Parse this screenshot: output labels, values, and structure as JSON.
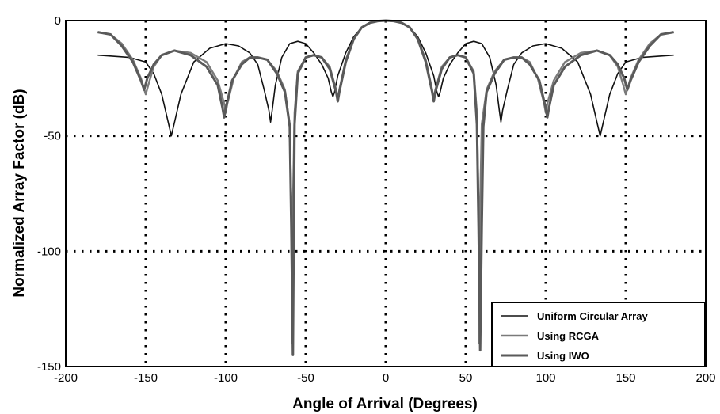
{
  "chart_data": {
    "type": "line",
    "title": "",
    "xlabel": "Angle of Arrival (Degrees)",
    "ylabel": "Normalized Array Factor (dB)",
    "xlim": [
      -200,
      200
    ],
    "ylim": [
      -150,
      0
    ],
    "xticks": [
      "-200",
      "-150",
      "-100",
      "-50",
      "0",
      "50",
      "100",
      "150",
      "200"
    ],
    "yticks": [
      "0",
      "-50",
      "-100",
      "-150"
    ],
    "xtick_values": [
      -200,
      -150,
      -100,
      -50,
      0,
      50,
      100,
      150,
      200
    ],
    "ytick_values": [
      0,
      -50,
      -100,
      -150
    ],
    "grid": "dotted, major ticks",
    "legend_position": "bottom-right",
    "series": [
      {
        "name": "Uniform Circular Array",
        "color": "#111111",
        "x": [
          -180,
          -160,
          -150,
          -145,
          -140,
          -136,
          -134,
          -132,
          -128,
          -120,
          -110,
          -100,
          -92,
          -85,
          -80,
          -76,
          -73,
          -72,
          -71,
          -69,
          -65,
          -60,
          -55,
          -50,
          -45,
          -40,
          -36,
          -34,
          -33,
          -32,
          -30,
          -25,
          -20,
          -15,
          -10,
          -5,
          0,
          5,
          10,
          15,
          20,
          25,
          30,
          32,
          33,
          34,
          36,
          40,
          45,
          50,
          55,
          60,
          65,
          69,
          71,
          72,
          73,
          76,
          80,
          85,
          92,
          100,
          110,
          120,
          128,
          132,
          134,
          136,
          140,
          145,
          150,
          160,
          180
        ],
        "y": [
          -15,
          -16,
          -18,
          -23,
          -32,
          -44,
          -50,
          -44,
          -32,
          -18,
          -12,
          -10,
          -11,
          -14,
          -19,
          -30,
          -39,
          -44,
          -39,
          -28,
          -16,
          -10,
          -9,
          -10,
          -14,
          -19,
          -25,
          -31,
          -33,
          -31,
          -24,
          -14,
          -7,
          -3,
          -1,
          -0.3,
          0,
          -0.3,
          -1,
          -3,
          -7,
          -14,
          -24,
          -31,
          -33,
          -31,
          -25,
          -19,
          -14,
          -10,
          -9,
          -10,
          -16,
          -28,
          -39,
          -44,
          -39,
          -30,
          -19,
          -14,
          -11,
          -10,
          -12,
          -18,
          -32,
          -44,
          -50,
          -44,
          -32,
          -23,
          -18,
          -16,
          -15
        ]
      },
      {
        "name": "Using RCGA",
        "color": "#7a7a7a",
        "x": [
          -180,
          -172,
          -165,
          -158,
          -153,
          -150,
          -148,
          -145,
          -140,
          -132,
          -122,
          -112,
          -105,
          -101,
          -100,
          -99,
          -95,
          -90,
          -85,
          -80,
          -74,
          -68,
          -63,
          -60,
          -59,
          -58.5,
          -58,
          -57,
          -55,
          -50,
          -45,
          -40,
          -35,
          -31,
          -30,
          -29,
          -25,
          -20,
          -15,
          -10,
          -5,
          0,
          5,
          10,
          15,
          20,
          25,
          29,
          30,
          31,
          35,
          40,
          45,
          50,
          55,
          57,
          58,
          58.5,
          59,
          60,
          63,
          68,
          74,
          80,
          85,
          90,
          95,
          99,
          100,
          101,
          105,
          112,
          122,
          132,
          140,
          145,
          148,
          150,
          153,
          158,
          165,
          172,
          180
        ],
        "y": [
          -5,
          -6,
          -10,
          -17,
          -25,
          -32,
          -27,
          -20,
          -15,
          -13,
          -14,
          -18,
          -26,
          -36,
          -40,
          -36,
          -25,
          -18,
          -16,
          -16,
          -17,
          -22,
          -30,
          -45,
          -80,
          -140,
          -80,
          -40,
          -22,
          -16,
          -15,
          -16,
          -20,
          -30,
          -34,
          -30,
          -17,
          -8,
          -3,
          -1,
          -0.2,
          0,
          -0.2,
          -1,
          -3,
          -8,
          -17,
          -30,
          -34,
          -30,
          -20,
          -16,
          -15,
          -16,
          -22,
          -40,
          -80,
          -140,
          -80,
          -45,
          -30,
          -22,
          -17,
          -16,
          -16,
          -18,
          -25,
          -36,
          -40,
          -36,
          -26,
          -18,
          -14,
          -13,
          -15,
          -20,
          -27,
          -32,
          -25,
          -17,
          -10,
          -6,
          -5
        ]
      },
      {
        "name": "Using IWO",
        "color": "#5a5a5a",
        "x": [
          -180,
          -172,
          -165,
          -158,
          -153,
          -151,
          -149,
          -145,
          -140,
          -132,
          -122,
          -112,
          -105,
          -102,
          -101,
          -100,
          -96,
          -90,
          -85,
          -80,
          -74,
          -68,
          -63,
          -60,
          -59,
          -58,
          -57.5,
          -57,
          -55,
          -50,
          -45,
          -40,
          -35,
          -31,
          -30,
          -29,
          -25,
          -20,
          -15,
          -10,
          -5,
          0,
          5,
          10,
          15,
          20,
          25,
          29,
          30,
          31,
          35,
          40,
          45,
          50,
          55,
          57,
          58,
          59,
          60,
          61,
          63,
          68,
          74,
          80,
          85,
          90,
          96,
          100,
          101,
          102,
          105,
          112,
          122,
          132,
          140,
          145,
          149,
          151,
          153,
          158,
          165,
          172,
          180
        ],
        "y": [
          -5,
          -6,
          -11,
          -18,
          -26,
          -30,
          -25,
          -19,
          -15,
          -13,
          -15,
          -20,
          -28,
          -38,
          -42,
          -38,
          -26,
          -19,
          -16,
          -16,
          -17,
          -23,
          -31,
          -46,
          -90,
          -145,
          -90,
          -45,
          -23,
          -16,
          -15,
          -16,
          -21,
          -31,
          -35,
          -31,
          -18,
          -8,
          -3,
          -1,
          -0.2,
          0,
          -0.2,
          -1,
          -3,
          -8,
          -18,
          -31,
          -35,
          -31,
          -21,
          -16,
          -15,
          -16,
          -23,
          -45,
          -90,
          -143,
          -90,
          -46,
          -31,
          -23,
          -17,
          -16,
          -16,
          -19,
          -26,
          -38,
          -42,
          -38,
          -28,
          -20,
          -15,
          -13,
          -15,
          -19,
          -25,
          -30,
          -26,
          -18,
          -11,
          -6,
          -5
        ]
      }
    ]
  }
}
